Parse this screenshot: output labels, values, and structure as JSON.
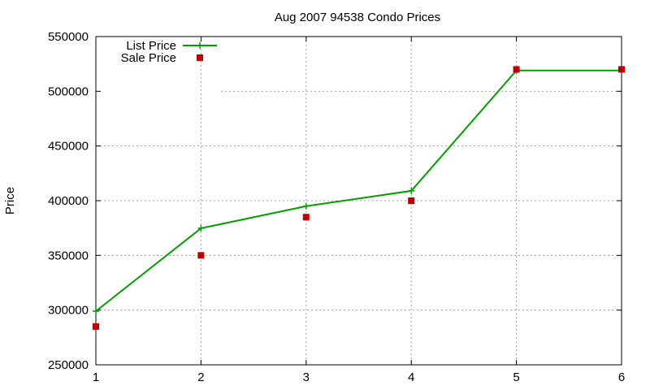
{
  "chart_data": {
    "type": "line",
    "title": "Aug 2007 94538 Condo Prices",
    "xlabel": "",
    "ylabel": "Price",
    "xlim": [
      1,
      6
    ],
    "ylim": [
      250000,
      550000
    ],
    "x_ticks": [
      1,
      2,
      3,
      4,
      5,
      6
    ],
    "y_ticks": [
      250000,
      300000,
      350000,
      400000,
      450000,
      500000,
      550000
    ],
    "grid": true,
    "legend_position": "top-left",
    "series": [
      {
        "name": "List Price",
        "style": "line+cross",
        "color": "#00a000",
        "x": [
          1,
          2,
          3,
          4,
          5,
          6
        ],
        "y": [
          299000,
          374800,
          395000,
          409000,
          519000,
          519000
        ]
      },
      {
        "name": "Sale Price",
        "style": "square",
        "color": "#c00000",
        "x": [
          1,
          2,
          3,
          4,
          5,
          6
        ],
        "y": [
          285000,
          350000,
          385000,
          400000,
          520000,
          520000
        ]
      }
    ]
  }
}
